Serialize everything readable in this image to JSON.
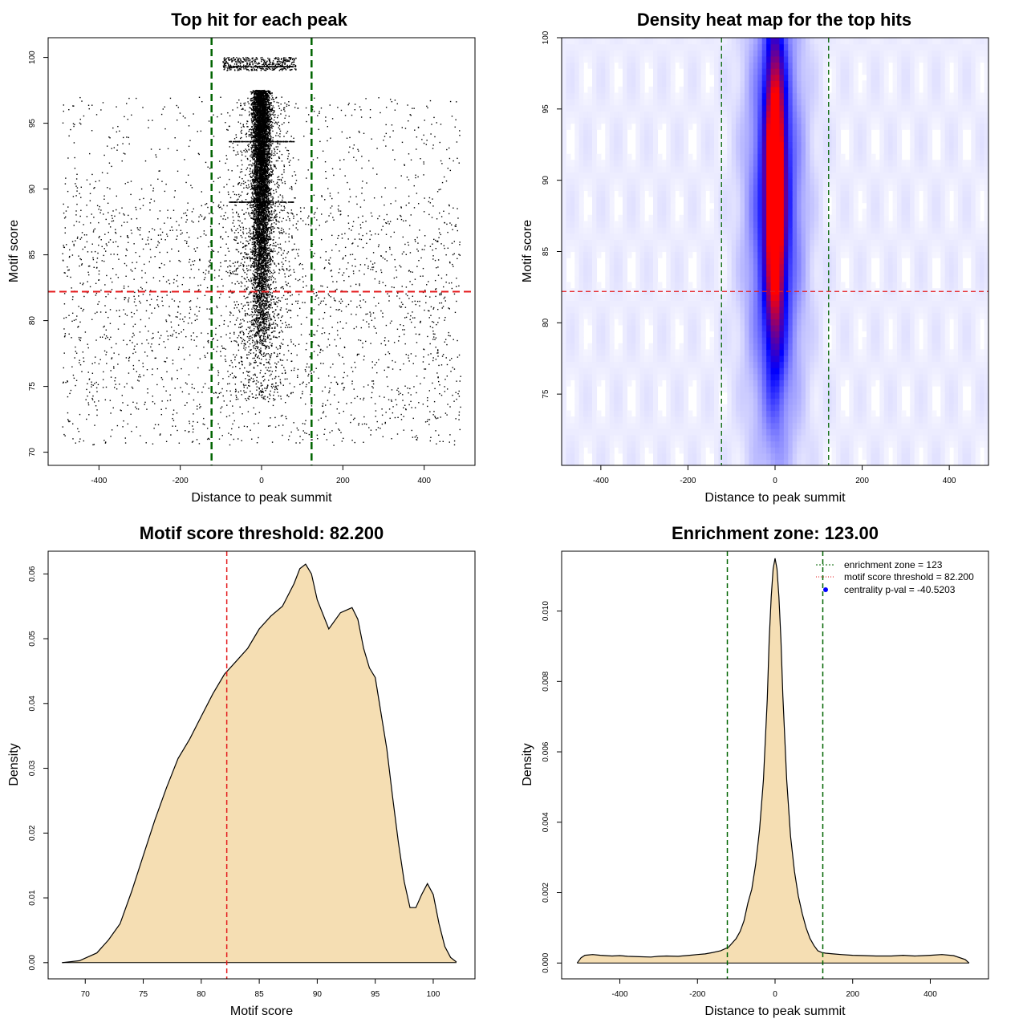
{
  "figure": {
    "panels": [
      {
        "title": "Top hit for each peak",
        "xlabel": "Distance to peak summit",
        "ylabel": "Motif score"
      },
      {
        "title": "Density heat map for the top hits",
        "xlabel": "Distance to peak summit",
        "ylabel": "Motif score"
      },
      {
        "title": "Motif score threshold: 82.200",
        "xlabel": "Motif score",
        "ylabel": "Density"
      },
      {
        "title": "Enrichment zone: 123.00",
        "xlabel": "Distance to peak summit",
        "ylabel": "Density"
      }
    ],
    "legend": {
      "items": [
        {
          "label": "enrichment zone = 123",
          "color": "#006400",
          "style": "dashed"
        },
        {
          "label": "motif score threshold = 82.200",
          "color": "#e41a1c",
          "style": "dotted"
        },
        {
          "label": "centrality p-val = -40.5203",
          "color": "#0000ff",
          "style": "point"
        }
      ]
    }
  },
  "chart_data": [
    {
      "type": "scatter",
      "title": "Top hit for each peak",
      "xlabel": "Distance to peak summit",
      "ylabel": "Motif score",
      "xlim": [
        -525,
        525
      ],
      "ylim": [
        69,
        101.5
      ],
      "xticks": [
        -400,
        -200,
        0,
        200,
        400
      ],
      "yticks": [
        70,
        75,
        80,
        85,
        90,
        95,
        100
      ],
      "point_color": "#000000",
      "summary": {
        "central_cluster_x_range": [
          -35,
          35
        ],
        "central_cluster_y_range": [
          77,
          97.5
        ],
        "top_band_x_range": [
          -95,
          85
        ],
        "top_band_y_range": [
          99.0,
          100.0
        ],
        "background_x_range": [
          -490,
          490
        ],
        "background_y_range": [
          70.5,
          97
        ]
      },
      "annotations": {
        "vlines": [
          {
            "x": -123,
            "color": "#006400",
            "style": "dashed"
          },
          {
            "x": 123,
            "color": "#006400",
            "style": "dashed"
          }
        ],
        "hlines": [
          {
            "y": 82.2,
            "color": "#e41a1c",
            "style": "dashed"
          }
        ]
      }
    },
    {
      "type": "heatmap",
      "title": "Density heat map for the top hits",
      "xlabel": "Distance to peak summit",
      "ylabel": "Motif score",
      "xlim": [
        -490,
        490
      ],
      "ylim": [
        70,
        100
      ],
      "xticks": [
        -400,
        -200,
        0,
        200,
        400
      ],
      "yticks": [
        75,
        80,
        85,
        90,
        95,
        100
      ],
      "colors": {
        "low": "#ffffff",
        "mid": "#0000ff",
        "high": "#ff0000"
      },
      "peak": {
        "x": 0,
        "y": 90
      },
      "annotations": {
        "vlines": [
          {
            "x": -123,
            "color": "#006400",
            "style": "dashed"
          },
          {
            "x": 123,
            "color": "#006400",
            "style": "dashed"
          }
        ],
        "hlines": [
          {
            "y": 82.2,
            "color": "#e41a1c",
            "style": "dashed"
          }
        ]
      }
    },
    {
      "type": "area",
      "title": "Motif score threshold: 82.200",
      "xlabel": "Motif score",
      "ylabel": "Density",
      "xlim": [
        66.8,
        103.6
      ],
      "ylim": [
        -0.0025,
        0.0635
      ],
      "xticks": [
        70,
        75,
        80,
        85,
        90,
        95,
        100
      ],
      "yticks": [
        0.0,
        0.01,
        0.02,
        0.03,
        0.04,
        0.05,
        0.06
      ],
      "ytick_labels": [
        "0.00",
        "0.01",
        "0.02",
        "0.03",
        "0.04",
        "0.05",
        "0.06"
      ],
      "fill": "#f5deb3",
      "x": [
        68.0,
        69.5,
        71.0,
        72.0,
        73.0,
        74.0,
        75.0,
        76.0,
        77.0,
        78.0,
        79.0,
        80.0,
        81.0,
        82.0,
        83.0,
        84.0,
        85.0,
        86.0,
        87.0,
        88.0,
        88.5,
        89.0,
        89.5,
        90.0,
        91.0,
        92.0,
        93.0,
        93.5,
        94.0,
        94.5,
        95.0,
        95.5,
        96.0,
        96.5,
        97.0,
        97.5,
        98.0,
        98.5,
        99.0,
        99.5,
        100.0,
        100.5,
        101.0,
        101.5,
        102.0
      ],
      "y": [
        0.0,
        0.0003,
        0.0015,
        0.0035,
        0.006,
        0.011,
        0.0165,
        0.022,
        0.027,
        0.0315,
        0.0345,
        0.038,
        0.0415,
        0.0445,
        0.0465,
        0.0485,
        0.0515,
        0.0535,
        0.055,
        0.0585,
        0.0608,
        0.0615,
        0.06,
        0.056,
        0.0515,
        0.054,
        0.0548,
        0.053,
        0.0485,
        0.0455,
        0.044,
        0.0385,
        0.033,
        0.0255,
        0.0185,
        0.0125,
        0.0085,
        0.0085,
        0.0105,
        0.0122,
        0.0105,
        0.006,
        0.0025,
        0.0008,
        0.0001
      ],
      "annotations": {
        "vlines": [
          {
            "x": 82.2,
            "color": "#e41a1c",
            "style": "dashed"
          }
        ]
      }
    },
    {
      "type": "area",
      "title": "Enrichment zone: 123.00",
      "xlabel": "Distance to peak summit",
      "ylabel": "Density",
      "xlim": [
        -550,
        550
      ],
      "ylim": [
        -0.00045,
        0.0117
      ],
      "xticks": [
        -400,
        -200,
        0,
        200,
        400
      ],
      "yticks": [
        0.0,
        0.002,
        0.004,
        0.006,
        0.008,
        0.01
      ],
      "ytick_labels": [
        "0.000",
        "0.002",
        "0.004",
        "0.006",
        "0.008",
        "0.010"
      ],
      "fill": "#f5deb3",
      "x": [
        -510,
        -500,
        -490,
        -470,
        -450,
        -420,
        -400,
        -380,
        -350,
        -320,
        -300,
        -280,
        -250,
        -220,
        -200,
        -180,
        -160,
        -140,
        -120,
        -100,
        -90,
        -80,
        -70,
        -60,
        -50,
        -40,
        -30,
        -20,
        -15,
        -10,
        -5,
        0,
        5,
        10,
        15,
        20,
        30,
        40,
        50,
        60,
        70,
        80,
        90,
        100,
        110,
        120,
        130,
        150,
        170,
        200,
        230,
        260,
        300,
        330,
        360,
        400,
        430,
        460,
        490,
        500
      ],
      "y": [
        0.0,
        0.00015,
        0.00022,
        0.00024,
        0.00022,
        0.0002,
        0.00021,
        0.00019,
        0.00018,
        0.00017,
        0.00019,
        0.0002,
        0.00019,
        0.00022,
        0.00024,
        0.00026,
        0.0003,
        0.00035,
        0.00045,
        0.0007,
        0.0009,
        0.0012,
        0.0017,
        0.0021,
        0.0028,
        0.0038,
        0.0052,
        0.0075,
        0.0092,
        0.0104,
        0.0112,
        0.0115,
        0.0112,
        0.0104,
        0.0092,
        0.0076,
        0.0052,
        0.0036,
        0.0026,
        0.0019,
        0.0014,
        0.001,
        0.0007,
        0.0005,
        0.00035,
        0.0003,
        0.00028,
        0.00026,
        0.00024,
        0.00022,
        0.00021,
        0.0002,
        0.0002,
        0.00022,
        0.0002,
        0.00022,
        0.00024,
        0.00021,
        0.0001,
        0.0
      ],
      "annotations": {
        "vlines": [
          {
            "x": -123,
            "color": "#006400",
            "style": "dashed"
          },
          {
            "x": 123,
            "color": "#006400",
            "style": "dashed"
          }
        ],
        "legend_position": "top-right"
      }
    }
  ]
}
